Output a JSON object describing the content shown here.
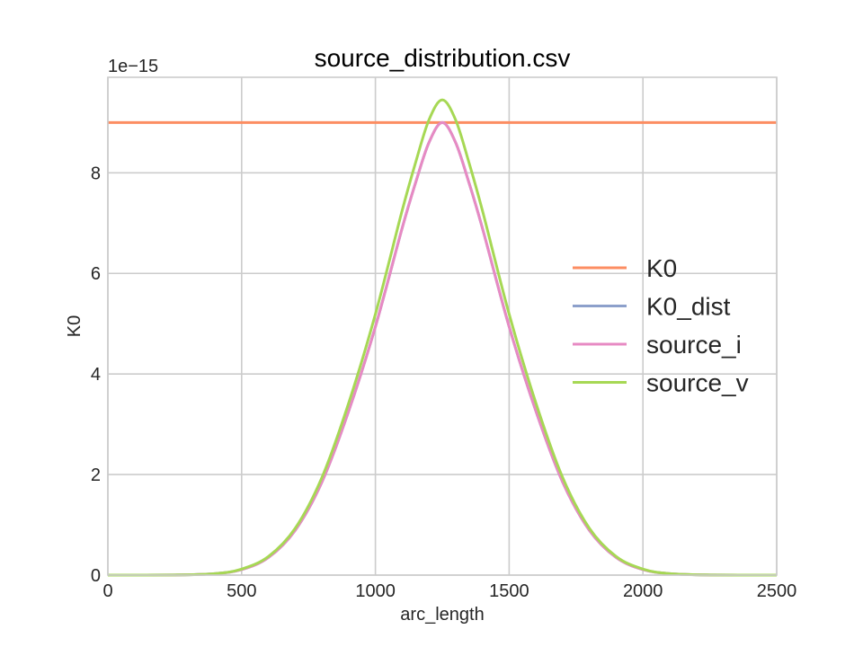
{
  "chart_data": {
    "type": "line",
    "title": "source_distribution.csv",
    "xlabel": "arc_length",
    "ylabel": "K0",
    "offset_text": "1e−15",
    "xlim": [
      0,
      2500
    ],
    "ylim": [
      0,
      9.9
    ],
    "xticks": [
      0,
      500,
      1000,
      1500,
      2000,
      2500
    ],
    "yticks": [
      0,
      2,
      4,
      6,
      8
    ],
    "grid": true,
    "legend_position": "center-right",
    "x": [
      0,
      250,
      400,
      500,
      600,
      700,
      800,
      900,
      1000,
      1100,
      1150,
      1200,
      1250,
      1300,
      1350,
      1400,
      1500,
      1600,
      1700,
      1800,
      1900,
      2000,
      2100,
      2250,
      2500
    ],
    "series": [
      {
        "name": "K0",
        "color": "#fc8d62",
        "values": [
          9.0,
          9.0,
          9.0,
          9.0,
          9.0,
          9.0,
          9.0,
          9.0,
          9.0,
          9.0,
          9.0,
          9.0,
          9.0,
          9.0,
          9.0,
          9.0,
          9.0,
          9.0,
          9.0,
          9.0,
          9.0,
          9.0,
          9.0,
          9.0,
          9.0
        ]
      },
      {
        "name": "K0_dist",
        "color": "#8da0cb",
        "values": [
          0.0,
          0.003,
          0.03,
          0.11,
          0.35,
          0.89,
          1.85,
          3.26,
          4.94,
          6.9,
          7.8,
          8.6,
          9.0,
          8.6,
          7.8,
          6.9,
          4.94,
          3.26,
          1.85,
          0.89,
          0.35,
          0.11,
          0.03,
          0.003,
          0.0
        ]
      },
      {
        "name": "source_i",
        "color": "#e78ac3",
        "values": [
          0.0,
          0.003,
          0.03,
          0.11,
          0.35,
          0.89,
          1.85,
          3.26,
          4.94,
          6.9,
          7.8,
          8.6,
          9.0,
          8.6,
          7.8,
          6.9,
          4.94,
          3.26,
          1.85,
          0.89,
          0.35,
          0.11,
          0.03,
          0.003,
          0.0
        ]
      },
      {
        "name": "source_v",
        "color": "#a6d854",
        "values": [
          0.0,
          0.003,
          0.03,
          0.12,
          0.37,
          0.93,
          1.94,
          3.42,
          5.19,
          7.25,
          8.2,
          9.05,
          9.45,
          9.05,
          8.2,
          7.25,
          5.19,
          3.42,
          1.94,
          0.93,
          0.37,
          0.12,
          0.03,
          0.003,
          0.0
        ]
      }
    ]
  }
}
